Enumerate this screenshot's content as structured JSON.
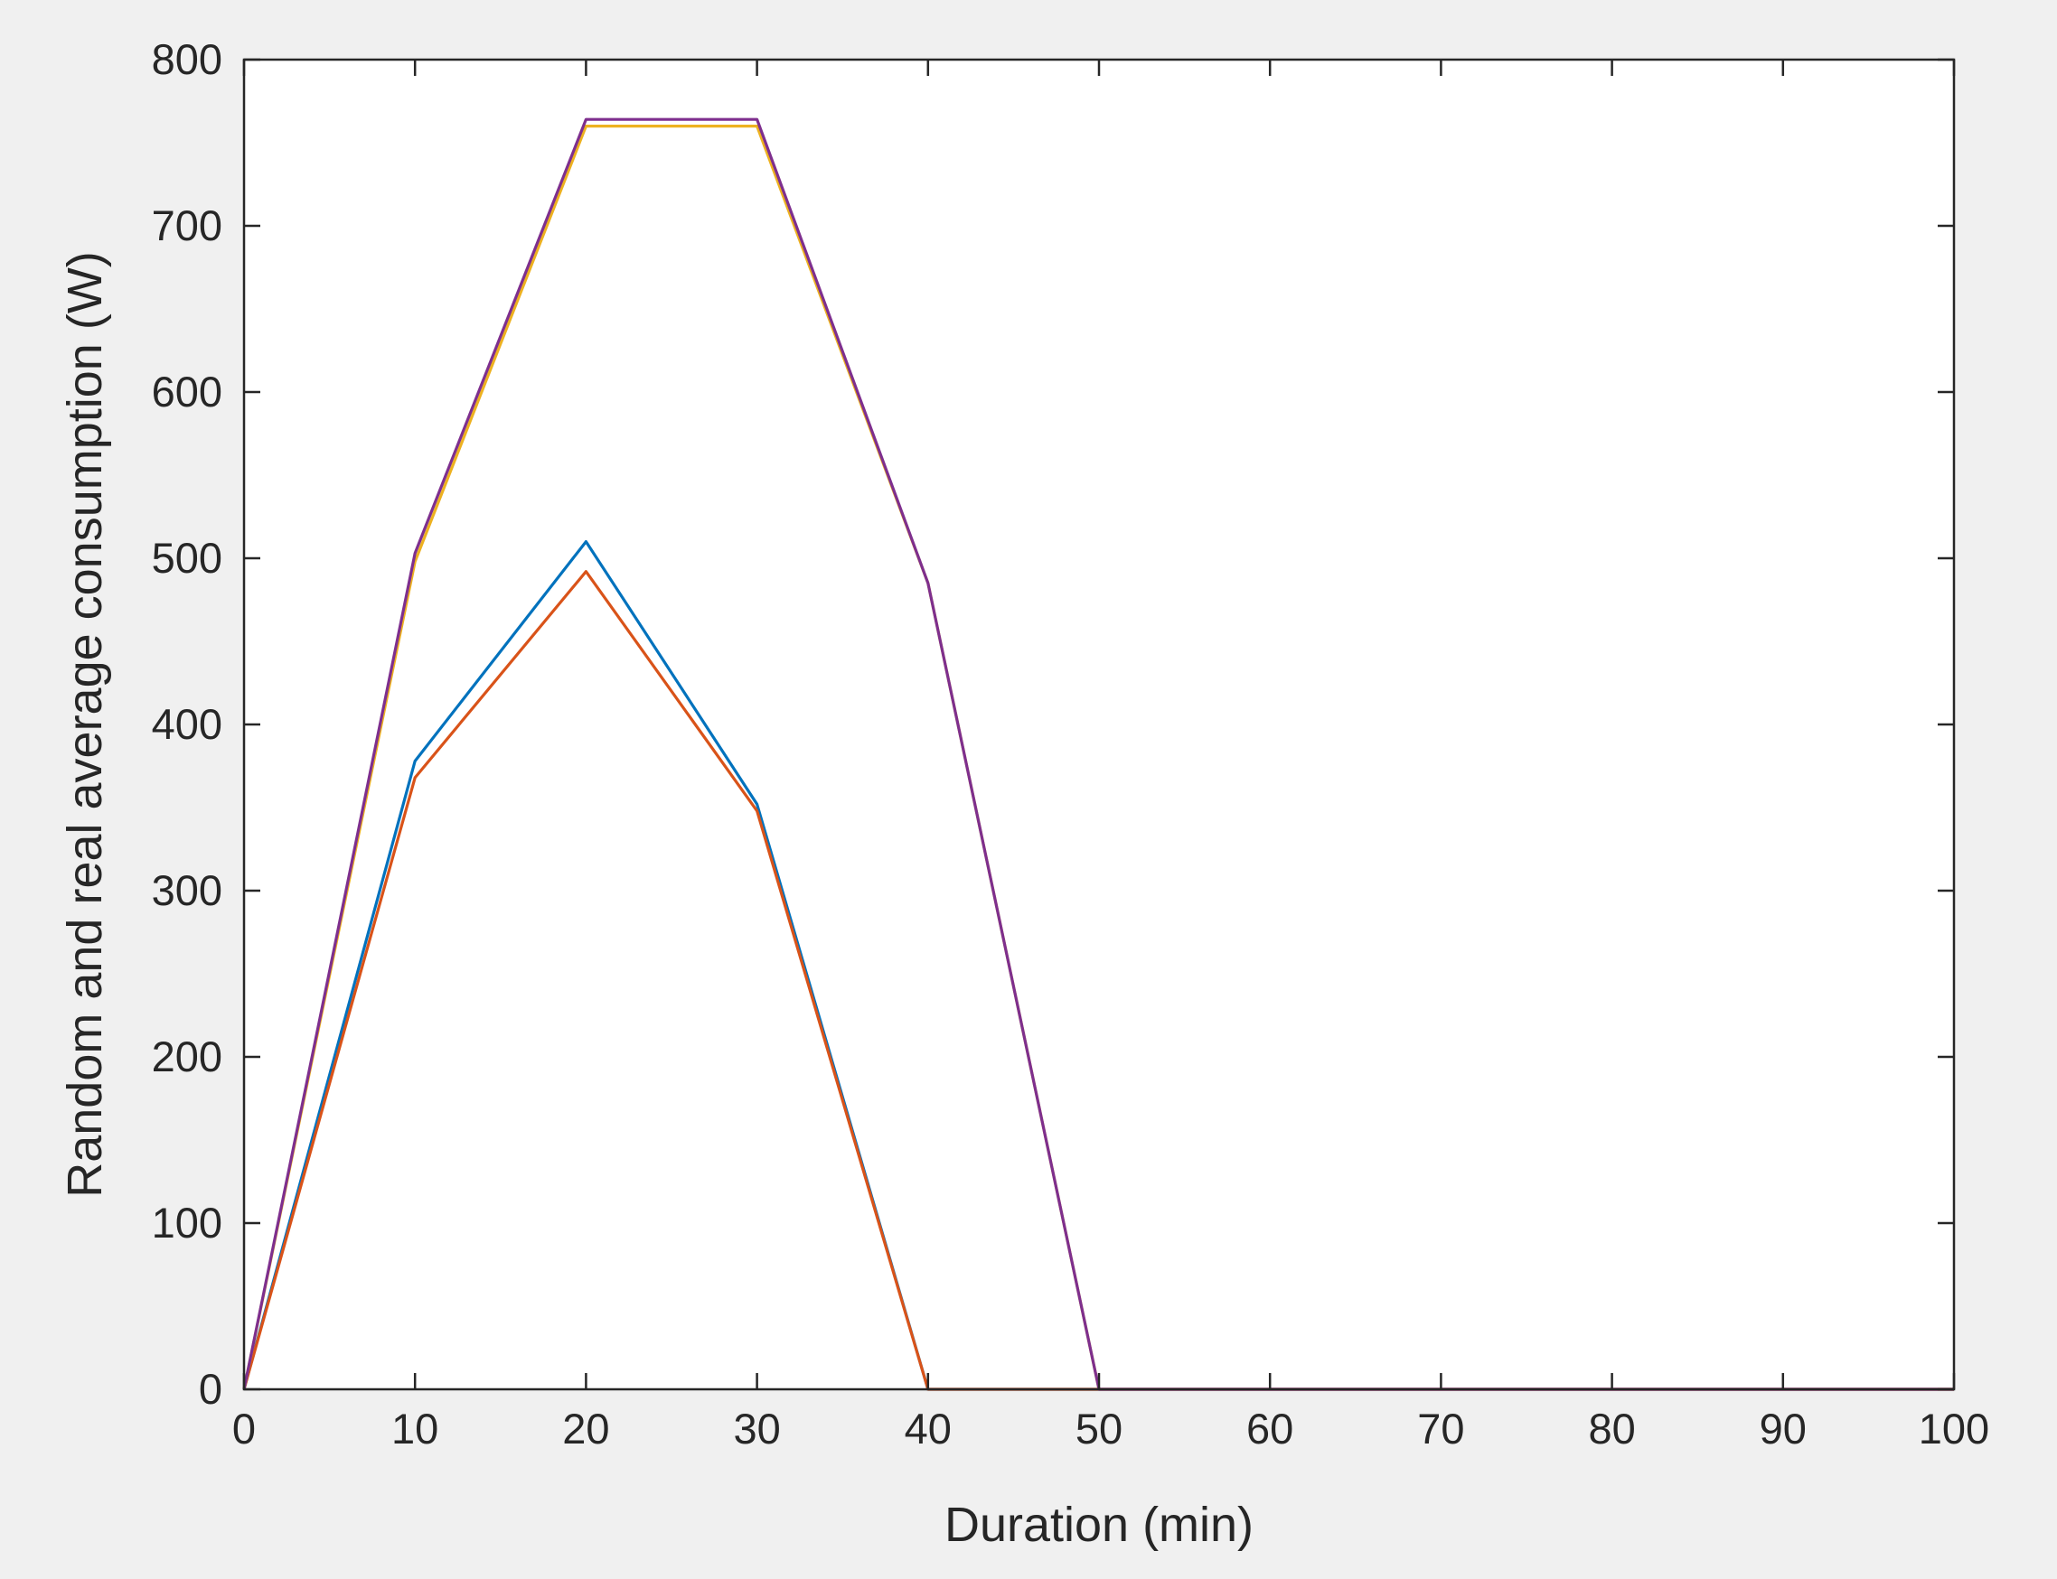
{
  "chart_data": {
    "type": "line",
    "title": "",
    "xlabel": "Duration (min)",
    "ylabel": "Random and real average consumption (W)",
    "xlim": [
      0,
      100
    ],
    "ylim": [
      0,
      800
    ],
    "x_ticks": [
      0,
      10,
      20,
      30,
      40,
      50,
      60,
      70,
      80,
      90,
      100
    ],
    "y_ticks": [
      0,
      100,
      200,
      300,
      400,
      500,
      600,
      700,
      800
    ],
    "grid": false,
    "legend": "none",
    "x": [
      0,
      10,
      20,
      30,
      40,
      50,
      60,
      70,
      80,
      90,
      100
    ],
    "series": [
      {
        "color": "#0072BD",
        "values": [
          0,
          378,
          510,
          352,
          0,
          0,
          0,
          0,
          0,
          0,
          0
        ]
      },
      {
        "color": "#D95319",
        "values": [
          0,
          368,
          492,
          348,
          0,
          0,
          0,
          0,
          0,
          0,
          0
        ]
      },
      {
        "color": "#EDB120",
        "values": [
          0,
          498,
          760,
          760,
          485,
          0,
          0,
          0,
          0,
          0,
          0
        ]
      },
      {
        "color": "#7E2F8E",
        "values": [
          0,
          503,
          764,
          764,
          485,
          0,
          0,
          0,
          0,
          0,
          0
        ]
      }
    ]
  },
  "colors": {
    "figure_background": "#F0F0F0",
    "axes_background": "#FFFFFF",
    "axis_color": "#262626"
  }
}
